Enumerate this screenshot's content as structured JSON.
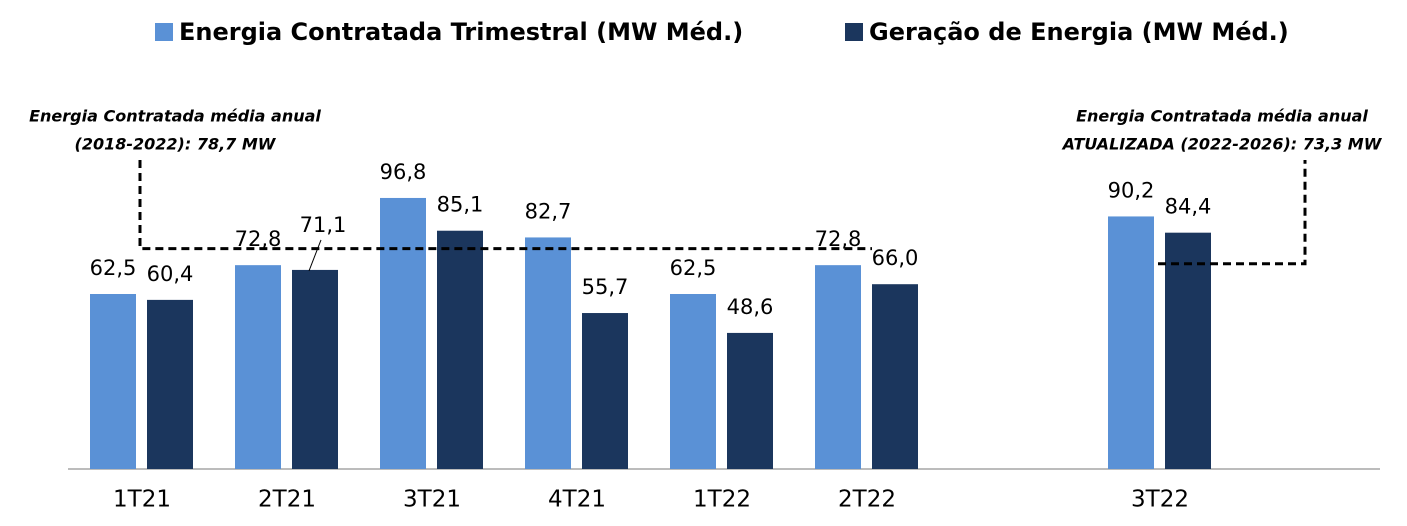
{
  "chart_data": {
    "type": "bar",
    "categories": [
      "1T21",
      "2T21",
      "3T21",
      "4T21",
      "1T22",
      "2T22",
      null,
      "3T22"
    ],
    "series": [
      {
        "name": "Energia Contratada Trimestral (MW Méd.)",
        "color": "#5a91d6",
        "values": [
          62.5,
          72.8,
          96.8,
          82.7,
          62.5,
          72.8,
          null,
          90.2
        ],
        "value_labels": [
          "62,5",
          "72,8",
          "96,8",
          "82,7",
          "62,5",
          "72,8",
          null,
          "90,2"
        ]
      },
      {
        "name": "Geração de Energia (MW Méd.)",
        "color": "#1b365d",
        "values": [
          60.4,
          71.1,
          85.1,
          55.7,
          48.6,
          66.0,
          null,
          84.4
        ],
        "value_labels": [
          "60,4",
          "71,1",
          "85,1",
          "55,7",
          "48,6",
          "66,0",
          null,
          "84,4"
        ]
      }
    ],
    "reference_lines": [
      {
        "value": 78.7,
        "label": [
          "Energia Contratada média anual",
          "(2018-2022): 78,7 MW"
        ]
      },
      {
        "value": 73.3,
        "label": [
          "Energia Contratada média anual",
          "ATUALIZADA (2022-2026): 73,3 MW"
        ]
      }
    ]
  }
}
